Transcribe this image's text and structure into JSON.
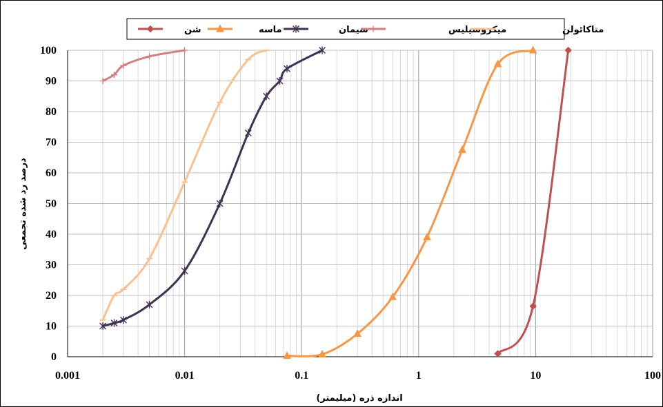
{
  "chart_data": {
    "type": "line",
    "x_scale": "log",
    "xlim": [
      0.001,
      100
    ],
    "ylim": [
      0,
      100
    ],
    "x_ticks": [
      "0.001",
      "0.01",
      "0.1",
      "1",
      "10",
      "100"
    ],
    "y_ticks": [
      "0",
      "10",
      "20",
      "30",
      "40",
      "50",
      "60",
      "70",
      "80",
      "90",
      "100"
    ],
    "xlabel": "اندازه ذره (میلیمتر)",
    "ylabel": "درصد رد شده تجمعی",
    "grid": true,
    "legend_position": "top",
    "series": [
      {
        "name": "شن",
        "color": "#c0504d",
        "marker": "diamond",
        "x": [
          4.75,
          9.5,
          19
        ],
        "y": [
          1,
          16.5,
          100
        ]
      },
      {
        "name": "ماسه",
        "color": "#f79646",
        "marker": "triangle",
        "x": [
          0.075,
          0.15,
          0.3,
          0.6,
          1.18,
          2.36,
          4.75,
          9.5
        ],
        "y": [
          0.3,
          0.8,
          7.5,
          19.5,
          39,
          67.5,
          95.5,
          100
        ]
      },
      {
        "name": "سیمان",
        "color": "#403152",
        "marker": "star",
        "x": [
          0.002,
          0.0025,
          0.003,
          0.005,
          0.01,
          0.02,
          0.035,
          0.05,
          0.065,
          0.075,
          0.15
        ],
        "y": [
          10,
          11,
          12,
          17,
          28,
          50,
          73,
          85,
          90,
          94,
          100
        ]
      },
      {
        "name": "میکروسیلیس",
        "color": "#d47f7f",
        "marker": "plus",
        "x": [
          0.002,
          0.0025,
          0.003,
          0.005,
          0.01
        ],
        "y": [
          90,
          92,
          95,
          98,
          100
        ]
      },
      {
        "name": "متاکائولن",
        "color": "#fac090",
        "marker": "dash",
        "x": [
          0.002,
          0.0025,
          0.003,
          0.005,
          0.01,
          0.02,
          0.035,
          0.05
        ],
        "y": [
          12,
          20,
          22,
          32,
          57,
          83,
          97,
          100
        ]
      }
    ]
  }
}
